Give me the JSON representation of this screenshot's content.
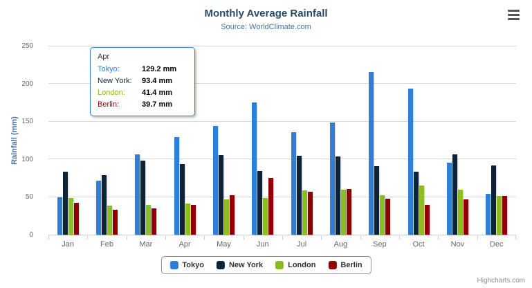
{
  "chart": {
    "title": "Monthly Average Rainfall",
    "subtitle": "Source: WorldClimate.com",
    "credits": "Highcharts.com"
  },
  "icons": {
    "context_menu": "hamburger (three horizontal lines)"
  },
  "chart_data": {
    "type": "bar",
    "title": "Monthly Average Rainfall",
    "subtitle": "Source: WorldClimate.com",
    "xlabel": "",
    "ylabel": "Rainfall (mm)",
    "ylim": [
      0,
      250
    ],
    "yticks": [
      0,
      50,
      100,
      150,
      200,
      250
    ],
    "grid": true,
    "legend_position": "bottom",
    "categories": [
      "Jan",
      "Feb",
      "Mar",
      "Apr",
      "May",
      "Jun",
      "Jul",
      "Aug",
      "Sep",
      "Oct",
      "Nov",
      "Dec"
    ],
    "series": [
      {
        "name": "Tokyo",
        "color": "#2f7ed8",
        "values": [
          49.9,
          71.5,
          106.4,
          129.2,
          144.0,
          176.0,
          135.6,
          148.5,
          216.4,
          194.1,
          95.6,
          54.4
        ]
      },
      {
        "name": "New York",
        "color": "#0d233a",
        "values": [
          83.6,
          78.8,
          98.5,
          93.4,
          106.0,
          84.5,
          105.0,
          104.3,
          91.2,
          83.5,
          106.6,
          92.3
        ]
      },
      {
        "name": "London",
        "color": "#8bbc21",
        "values": [
          48.9,
          38.8,
          39.3,
          41.4,
          47.0,
          48.3,
          59.0,
          59.6,
          52.4,
          65.2,
          59.3,
          51.2
        ]
      },
      {
        "name": "Berlin",
        "color": "#910000",
        "values": [
          42.4,
          33.2,
          34.5,
          39.7,
          52.6,
          75.5,
          57.4,
          60.4,
          47.6,
          39.1,
          46.8,
          51.1
        ]
      }
    ]
  },
  "tooltip": {
    "header": "Apr",
    "rows": [
      {
        "name": "Tokyo:",
        "value": "129.2 mm",
        "color": "#2f7ed8"
      },
      {
        "name": "New York:",
        "value": "93.4 mm",
        "color": "#0d233a"
      },
      {
        "name": "London:",
        "value": "41.4 mm",
        "color": "#8bbc21"
      },
      {
        "name": "Berlin:",
        "value": "39.7 mm",
        "color": "#910000"
      }
    ]
  },
  "legend": {
    "items": [
      {
        "label": "Tokyo",
        "color": "#2f7ed8"
      },
      {
        "label": "New York",
        "color": "#0d233a"
      },
      {
        "label": "London",
        "color": "#8bbc21"
      },
      {
        "label": "Berlin",
        "color": "#910000"
      }
    ]
  }
}
